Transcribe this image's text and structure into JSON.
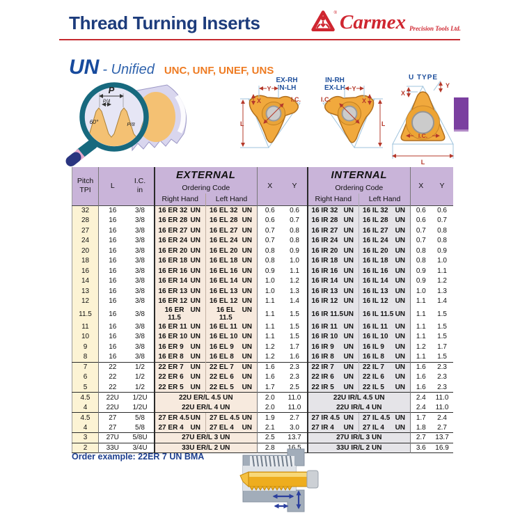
{
  "header": {
    "title": "Thread Turning Inserts",
    "brand": "Carmex",
    "brand_reg": "®",
    "tagline": "Precision Tools Ltd."
  },
  "series": {
    "code": "UN",
    "name": "- Unified",
    "subtypes": "UNC, UNF, UNEF, UNS"
  },
  "profile_diagram": {
    "p": "P",
    "p4": "P/4",
    "angle": "60°",
    "p8": "P/8"
  },
  "insert_diagrams": {
    "d1_line1": "EX-RH",
    "d1_line2": "IN-LH",
    "d2_line1": "IN-RH",
    "d2_line2": "EX-LH",
    "d3_title": "U TYPE",
    "dim_x": "X",
    "dim_y": "Y",
    "dim_l": "L",
    "dim_ic": "I.C."
  },
  "table": {
    "col_pitch_1": "Pitch",
    "col_pitch_2": "TPI",
    "col_l": "L",
    "col_ic_1": "I.C.",
    "col_ic_2": "in",
    "sec_external": "EXTERNAL",
    "sec_internal": "INTERNAL",
    "ordering_code": "Ordering Code",
    "right_hand": "Right Hand",
    "left_hand": "Left Hand",
    "col_x": "X",
    "col_y": "Y",
    "un_suffix": "UN",
    "rows": [
      {
        "p": "32",
        "l": "16",
        "ic": "3/8",
        "erh": "16 ER 32",
        "elh": "16 EL 32",
        "x1": "0.6",
        "y1": "0.6",
        "irh": "16 IR 32",
        "ilh": "16 IL 32",
        "x2": "0.6",
        "y2": "0.6"
      },
      {
        "p": "28",
        "l": "16",
        "ic": "3/8",
        "erh": "16 ER 28",
        "elh": "16 EL 28",
        "x1": "0.6",
        "y1": "0.7",
        "irh": "16 IR 28",
        "ilh": "16 IL 28",
        "x2": "0.6",
        "y2": "0.7"
      },
      {
        "p": "27",
        "l": "16",
        "ic": "3/8",
        "erh": "16 ER 27",
        "elh": "16 EL 27",
        "x1": "0.7",
        "y1": "0.8",
        "irh": "16 IR 27",
        "ilh": "16 IL 27",
        "x2": "0.7",
        "y2": "0.8"
      },
      {
        "p": "24",
        "l": "16",
        "ic": "3/8",
        "erh": "16 ER 24",
        "elh": "16 EL 24",
        "x1": "0.7",
        "y1": "0.8",
        "irh": "16 IR 24",
        "ilh": "16 IL 24",
        "x2": "0.7",
        "y2": "0.8"
      },
      {
        "p": "20",
        "l": "16",
        "ic": "3/8",
        "erh": "16 ER 20",
        "elh": "16 EL 20",
        "x1": "0.8",
        "y1": "0.9",
        "irh": "16 IR 20",
        "ilh": "16 IL 20",
        "x2": "0.8",
        "y2": "0.9"
      },
      {
        "p": "18",
        "l": "16",
        "ic": "3/8",
        "erh": "16 ER 18",
        "elh": "16 EL 18",
        "x1": "0.8",
        "y1": "1.0",
        "irh": "16 IR 18",
        "ilh": "16 IL 18",
        "x2": "0.8",
        "y2": "1.0"
      },
      {
        "p": "16",
        "l": "16",
        "ic": "3/8",
        "erh": "16 ER 16",
        "elh": "16 EL 16",
        "x1": "0.9",
        "y1": "1.1",
        "irh": "16 IR 16",
        "ilh": "16 IL 16",
        "x2": "0.9",
        "y2": "1.1"
      },
      {
        "p": "14",
        "l": "16",
        "ic": "3/8",
        "erh": "16 ER 14",
        "elh": "16 EL 14",
        "x1": "1.0",
        "y1": "1.2",
        "irh": "16 IR 14",
        "ilh": "16 IL 14",
        "x2": "0.9",
        "y2": "1.2"
      },
      {
        "p": "13",
        "l": "16",
        "ic": "3/8",
        "erh": "16 ER 13",
        "elh": "16 EL 13",
        "x1": "1.0",
        "y1": "1.3",
        "irh": "16 IR 13",
        "ilh": "16 IL 13",
        "x2": "1.0",
        "y2": "1.3"
      },
      {
        "p": "12",
        "l": "16",
        "ic": "3/8",
        "erh": "16 ER 12",
        "elh": "16 EL 12",
        "x1": "1.1",
        "y1": "1.4",
        "irh": "16 IR 12",
        "ilh": "16 IL 12",
        "x2": "1.1",
        "y2": "1.4"
      },
      {
        "p": "11.5",
        "l": "16",
        "ic": "3/8",
        "erh": "16 ER 11.5",
        "elh": "16 EL 11.5",
        "x1": "1.1",
        "y1": "1.5",
        "irh": "16 IR 11.5",
        "ilh": "16 IL 11.5",
        "x2": "1.1",
        "y2": "1.5"
      },
      {
        "p": "11",
        "l": "16",
        "ic": "3/8",
        "erh": "16 ER 11",
        "elh": "16 EL 11",
        "x1": "1.1",
        "y1": "1.5",
        "irh": "16 IR 11",
        "ilh": "16 IL 11",
        "x2": "1.1",
        "y2": "1.5"
      },
      {
        "p": "10",
        "l": "16",
        "ic": "3/8",
        "erh": "16 ER 10",
        "elh": "16 EL 10",
        "x1": "1.1",
        "y1": "1.5",
        "irh": "16 IR 10",
        "ilh": "16 IL 10",
        "x2": "1.1",
        "y2": "1.5"
      },
      {
        "p": "9",
        "l": "16",
        "ic": "3/8",
        "erh": "16 ER 9",
        "elh": "16 EL 9",
        "x1": "1.2",
        "y1": "1.7",
        "irh": "16 IR 9",
        "ilh": "16 IL 9",
        "x2": "1.2",
        "y2": "1.7"
      },
      {
        "p": "8",
        "l": "16",
        "ic": "3/8",
        "erh": "16 ER 8",
        "elh": "16 EL 8",
        "x1": "1.2",
        "y1": "1.6",
        "irh": "16 IR 8",
        "ilh": "16 IL 8",
        "x2": "1.1",
        "y2": "1.5"
      },
      {
        "p": "7",
        "l": "22",
        "ic": "1/2",
        "sep": true,
        "erh": "22 ER 7",
        "elh": "22 EL 7",
        "x1": "1.6",
        "y1": "2.3",
        "irh": "22 IR 7",
        "ilh": "22 IL 7",
        "x2": "1.6",
        "y2": "2.3"
      },
      {
        "p": "6",
        "l": "22",
        "ic": "1/2",
        "erh": "22 ER 6",
        "elh": "22 EL 6",
        "x1": "1.6",
        "y1": "2.3",
        "irh": "22 IR 6",
        "ilh": "22 IL 6",
        "x2": "1.6",
        "y2": "2.3"
      },
      {
        "p": "5",
        "l": "22",
        "ic": "1/2",
        "erh": "22 ER 5",
        "elh": "22 EL 5",
        "x1": "1.7",
        "y1": "2.5",
        "irh": "22 IR 5",
        "ilh": "22 IL 5",
        "x2": "1.6",
        "y2": "2.3"
      },
      {
        "p": "4.5",
        "l": "22U",
        "ic": "1/2U",
        "span": true,
        "sep": true,
        "ext": "22U ER/L 4.5 UN",
        "x1": "2.0",
        "y1": "11.0",
        "int": "22U IR/L 4.5 UN",
        "x2": "2.4",
        "y2": "11.0"
      },
      {
        "p": "4",
        "l": "22U",
        "ic": "1/2U",
        "span": true,
        "ext": "22U ER/L 4 UN",
        "x1": "2.0",
        "y1": "11.0",
        "int": "22U IR/L 4 UN",
        "x2": "2.4",
        "y2": "11.0"
      },
      {
        "p": "4.5",
        "l": "27",
        "ic": "5/8",
        "sep": true,
        "erh": "27 ER 4.5",
        "elh": "27 EL 4.5",
        "x1": "1.9",
        "y1": "2.7",
        "irh": "27 IR 4.5",
        "ilh": "27 IL 4.5",
        "x2": "1.7",
        "y2": "2.4"
      },
      {
        "p": "4",
        "l": "27",
        "ic": "5/8",
        "erh": "27 ER 4",
        "elh": "27 EL 4",
        "x1": "2.1",
        "y1": "3.0",
        "irh": "27 IR 4",
        "ilh": "27 IL 4",
        "x2": "1.8",
        "y2": "2.7"
      },
      {
        "p": "3",
        "l": "27U",
        "ic": "5/8U",
        "span": true,
        "sep": true,
        "ext": "27U ER/L 3 UN",
        "x1": "2.5",
        "y1": "13.7",
        "int": "27U IR/L 3 UN",
        "x2": "2.7",
        "y2": "13.7"
      },
      {
        "p": "2",
        "l": "33U",
        "ic": "3/4U",
        "span": true,
        "sep": true,
        "ext": "33U ER/L 2 UN",
        "x1": "2.8",
        "y1": "16.5",
        "int": "33U IR/L 2 UN",
        "x2": "3.6",
        "y2": "16.9"
      }
    ]
  },
  "footer": {
    "order_example": "Order example: 22ER 7 UN BMA"
  },
  "colors": {
    "title_blue": "#1d3c7c",
    "brand_red": "#cf2630",
    "subtype_orange": "#ee7b22",
    "navy_code": "#1b3f96",
    "teal_code": "#2e9fae",
    "header_bg": "#c9b4d9",
    "pitch_bg": "#fcf3d4",
    "external_bg": "#f7eade",
    "internal_bg": "#e5e4e8",
    "side_tab_purple": "#7b3fa0"
  }
}
